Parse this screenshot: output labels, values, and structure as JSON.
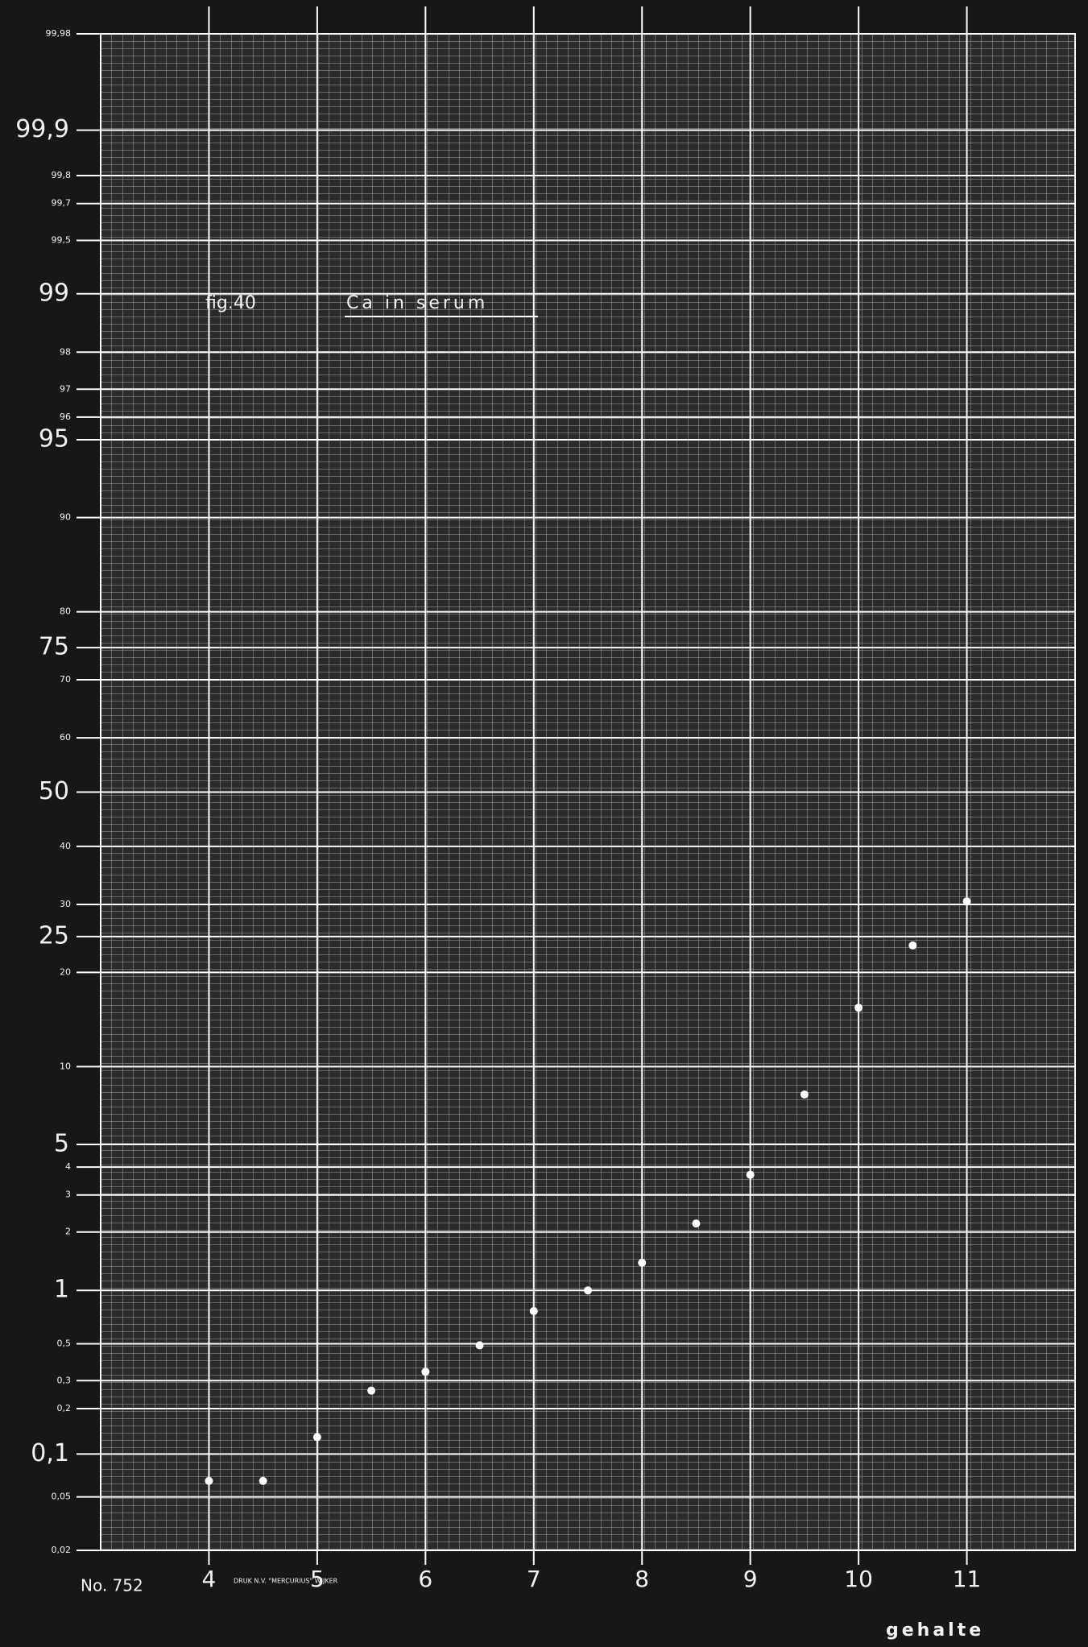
{
  "chart_data": {
    "type": "scatter",
    "figure_label": "fig.40",
    "title": "Ca in serum",
    "sheet_number": "No. 752",
    "printer": "DRUK N.V. \"MERCURIUS\" WIJKER",
    "x_label": "gehalte",
    "y_scale": "probability",
    "grid": true,
    "color": "#ffffff",
    "xlim": [
      3,
      12
    ],
    "xticks": [
      4,
      5,
      6,
      7,
      8,
      9,
      10,
      11
    ],
    "ylim": [
      0.02,
      99.98
    ],
    "yticks": [
      {
        "value": 99.98,
        "label": "99,98"
      },
      {
        "value": 99.9,
        "label": "99,9"
      },
      {
        "value": 99.8,
        "label": "99,8"
      },
      {
        "value": 99.7,
        "label": "99,7"
      },
      {
        "value": 99.5,
        "label": "99,5"
      },
      99,
      98,
      97,
      96,
      95,
      90,
      80,
      75,
      70,
      60,
      50,
      40,
      30,
      25,
      20,
      10,
      5,
      4,
      3,
      2,
      1,
      {
        "value": 0.5,
        "label": "0,5"
      },
      {
        "value": 0.3,
        "label": "0,3"
      },
      {
        "value": 0.2,
        "label": "0,2"
      },
      {
        "value": 0.1,
        "label": "0,1"
      },
      {
        "value": 0.05,
        "label": "0,05"
      },
      {
        "value": 0.02,
        "label": "0,02"
      }
    ],
    "x": [
      4,
      4.5,
      5,
      5.5,
      6,
      6.5,
      7,
      7.5,
      8,
      8.5,
      9,
      9.5,
      10,
      10.5,
      11
    ],
    "values": [
      0.065,
      0.065,
      0.13,
      0.26,
      0.34,
      0.49,
      0.77,
      1.0,
      1.4,
      2.2,
      3.7,
      7.9,
      15.7,
      23.7,
      30.5
    ]
  }
}
